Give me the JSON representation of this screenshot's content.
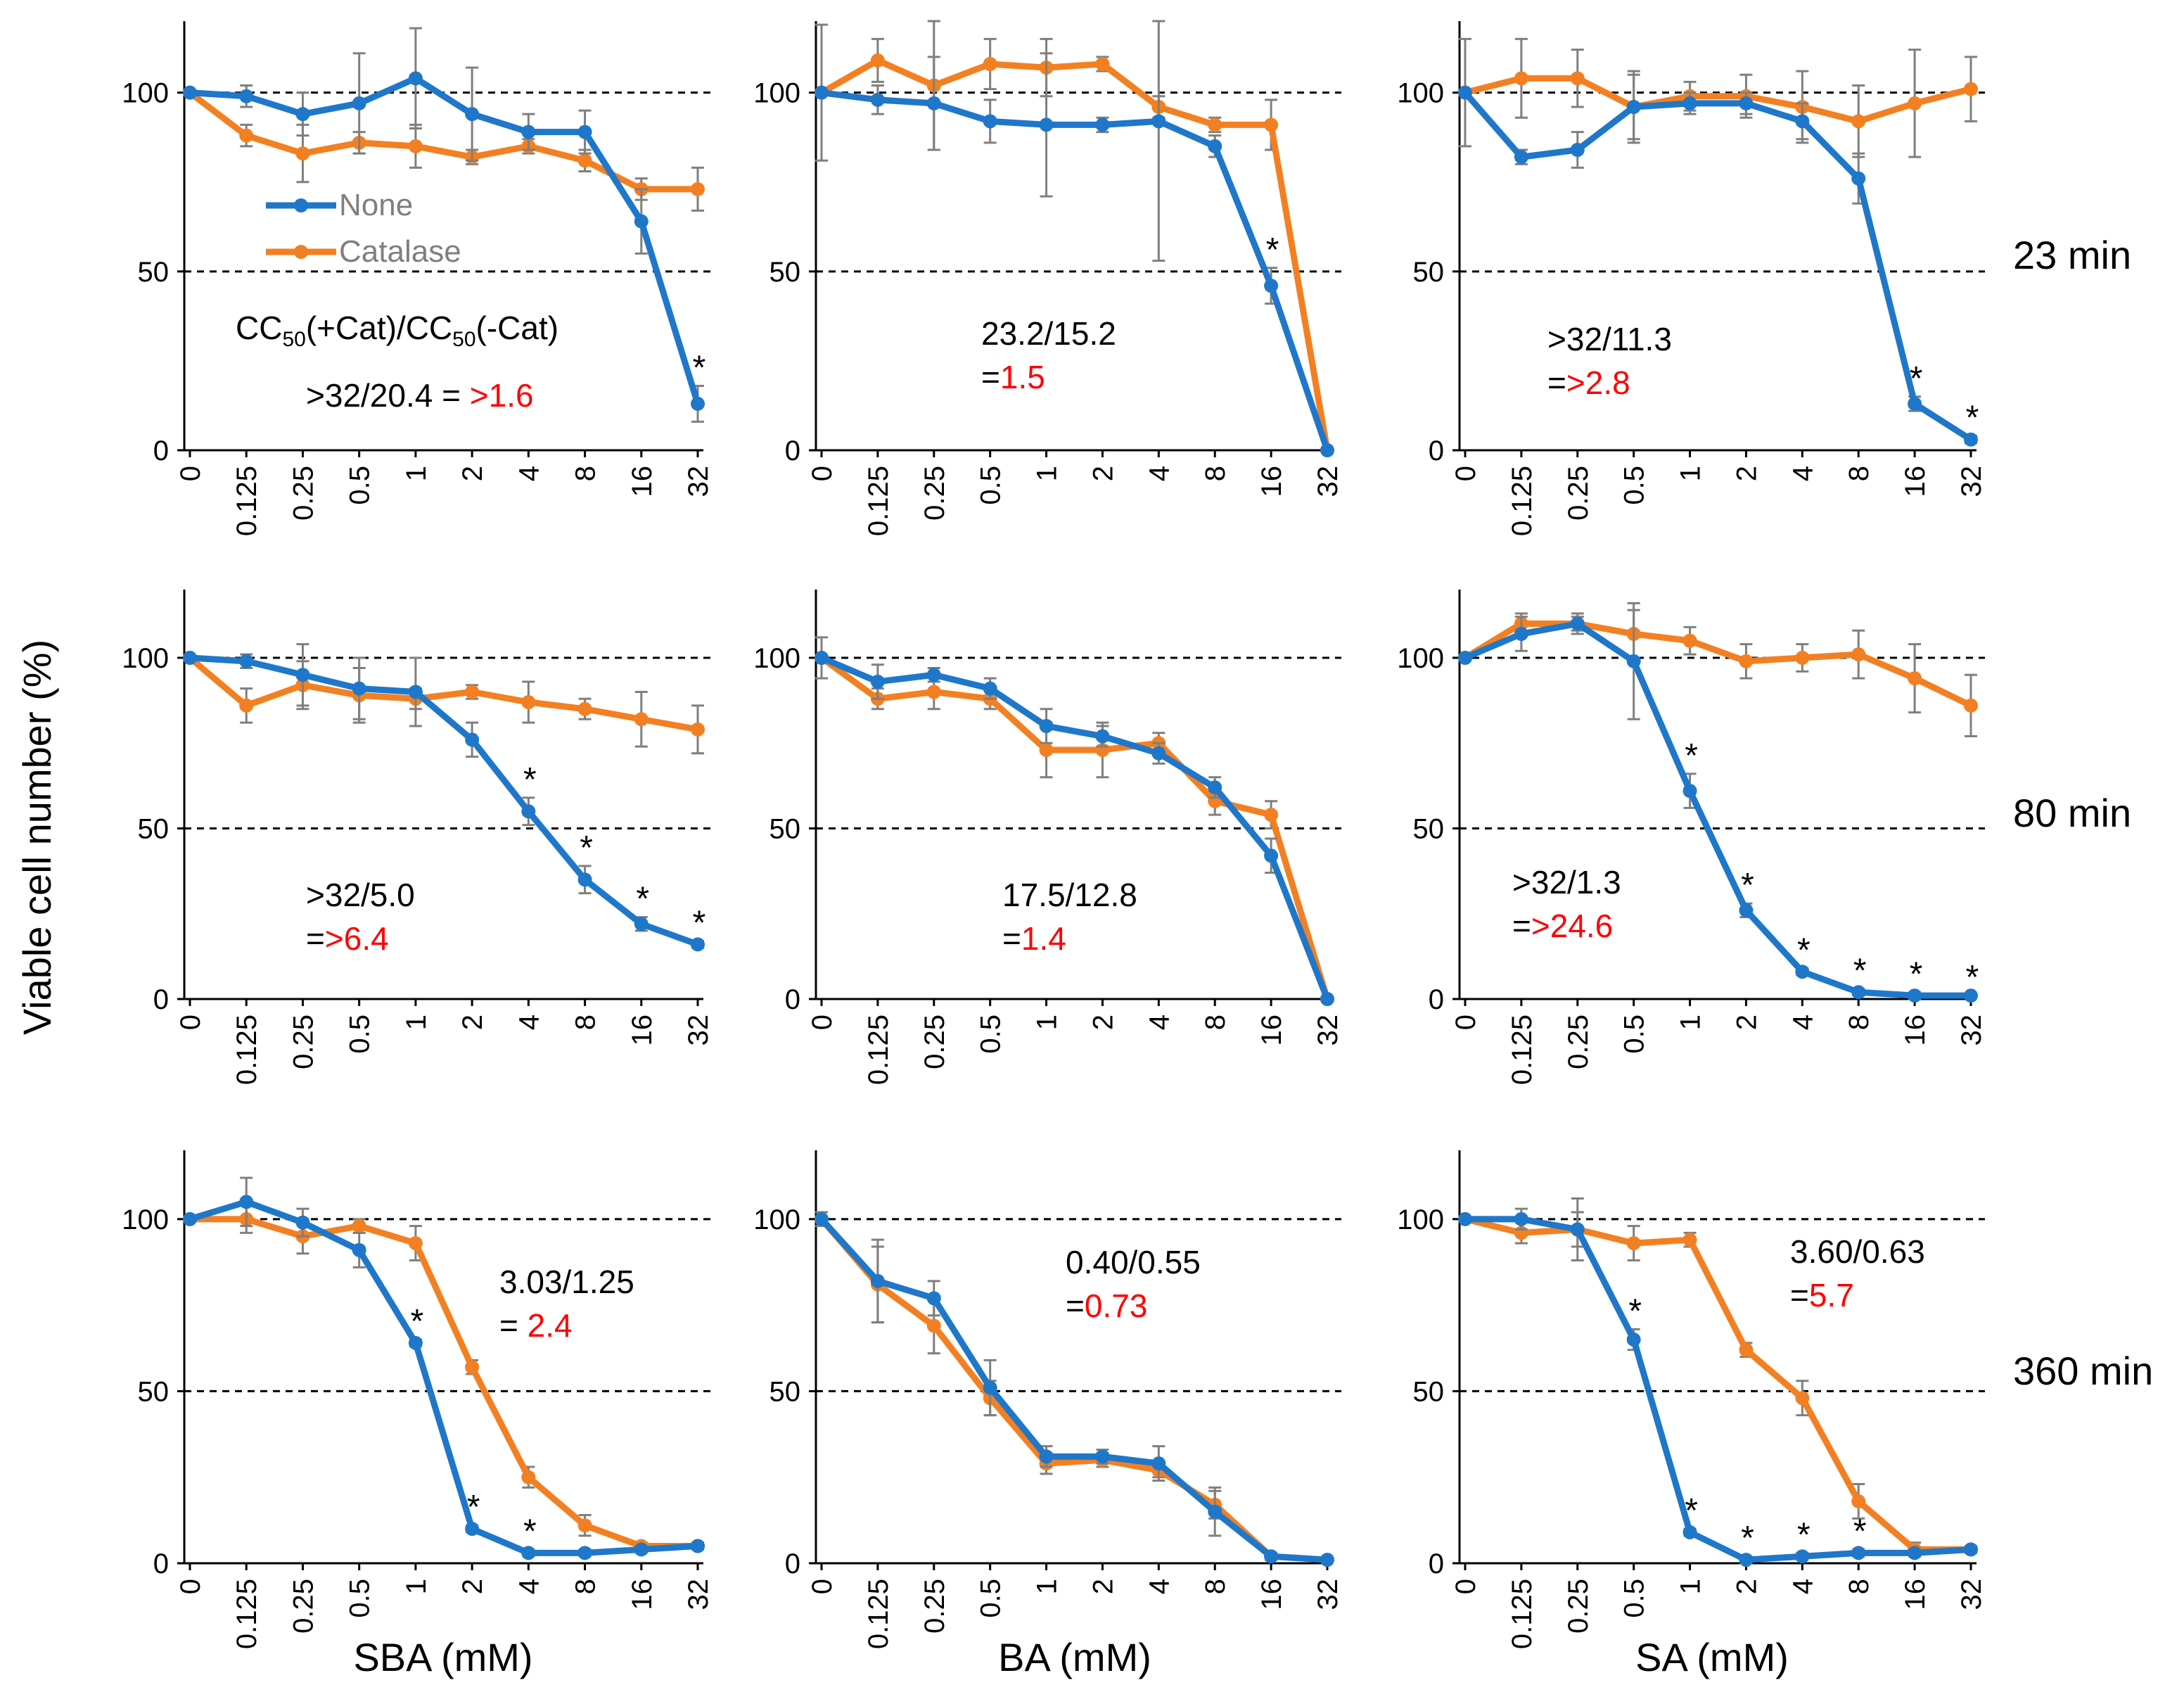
{
  "figure": {
    "y_axis_title": "Viable cell number (%)",
    "x_axis_titles": [
      "SBA (mM)",
      "BA (mM)",
      "SA (mM)"
    ],
    "row_labels": [
      "23 min",
      "80 min",
      "360 min"
    ],
    "legend": [
      {
        "name": "None",
        "color": "#1f77c9"
      },
      {
        "name": "Catalase",
        "color": "#f28022"
      }
    ],
    "formula": {
      "prefix": "CC",
      "sub": "50",
      "mid": "(+Cat)/CC",
      "sub2": "50",
      "suffix": "(-Cat)"
    }
  },
  "colors": {
    "none": "#1f77c9",
    "catalase": "#f28022",
    "ratio": "#ff0000",
    "error_bar": "#7f7f7f"
  },
  "chart_data": [
    {
      "type": "line",
      "row": 0,
      "col": 0,
      "time": "23 min",
      "compound": "SBA",
      "categories": [
        "0",
        "0.125",
        "0.25",
        "0.5",
        "1",
        "2",
        "4",
        "8",
        "16",
        "32"
      ],
      "ylim": [
        0,
        120
      ],
      "yticks": [
        0,
        50,
        100
      ],
      "ref_lines": [
        50,
        100
      ],
      "series": [
        {
          "name": "None",
          "values": [
            100,
            99,
            94,
            97,
            104,
            94,
            89,
            89,
            64,
            13
          ],
          "errors": [
            0,
            3,
            6,
            14,
            14,
            13,
            5,
            6,
            9,
            5
          ]
        },
        {
          "name": "Catalase",
          "values": [
            100,
            88,
            83,
            86,
            85,
            82,
            85,
            81,
            73,
            73
          ],
          "errors": [
            0,
            3,
            8,
            3,
            6,
            2,
            2,
            3,
            3,
            6
          ]
        }
      ],
      "stars": [
        9
      ],
      "ratio_line1": ">32/20.4 = ",
      "ratio_value": ">1.6",
      "ratio_split": false
    },
    {
      "type": "line",
      "row": 0,
      "col": 1,
      "time": "23 min",
      "compound": "BA",
      "categories": [
        "0",
        "0.125",
        "0.25",
        "0.5",
        "1",
        "2",
        "4",
        "8",
        "16",
        "32"
      ],
      "ylim": [
        0,
        120
      ],
      "yticks": [
        0,
        50,
        100
      ],
      "ref_lines": [
        50,
        100
      ],
      "series": [
        {
          "name": "None",
          "values": [
            100,
            98,
            97,
            92,
            91,
            91,
            92,
            85,
            46,
            0
          ],
          "errors": [
            19,
            4,
            13,
            6,
            20,
            2,
            39,
            3,
            5,
            0
          ]
        },
        {
          "name": "Catalase",
          "values": [
            100,
            109,
            102,
            108,
            107,
            108,
            96,
            91,
            91,
            0
          ],
          "errors": [
            0,
            6,
            18,
            7,
            8,
            2,
            3,
            2,
            7,
            0
          ]
        }
      ],
      "stars": [
        8
      ],
      "ratio_line1": "23.2/15.2",
      "ratio_value": "1.5",
      "ratio_split": true
    },
    {
      "type": "line",
      "row": 0,
      "col": 2,
      "time": "23 min",
      "compound": "SA",
      "categories": [
        "0",
        "0.125",
        "0.25",
        "0.5",
        "1",
        "2",
        "4",
        "8",
        "16",
        "32"
      ],
      "ylim": [
        0,
        120
      ],
      "yticks": [
        0,
        50,
        100
      ],
      "ref_lines": [
        50,
        100
      ],
      "series": [
        {
          "name": "None",
          "values": [
            100,
            82,
            84,
            96,
            97,
            97,
            92,
            76,
            13,
            3
          ],
          "errors": [
            15,
            2,
            5,
            10,
            3,
            3,
            5,
            7,
            2,
            1
          ]
        },
        {
          "name": "Catalase",
          "values": [
            100,
            104,
            104,
            96,
            99,
            99,
            96,
            92,
            97,
            101
          ],
          "errors": [
            0,
            11,
            8,
            9,
            4,
            6,
            10,
            10,
            15,
            9
          ]
        }
      ],
      "stars": [
        8,
        9
      ],
      "ratio_line1": ">32/11.3",
      "ratio_value": ">2.8",
      "ratio_split": true
    },
    {
      "type": "line",
      "row": 1,
      "col": 0,
      "time": "80 min",
      "compound": "SBA",
      "categories": [
        "0",
        "0.125",
        "0.25",
        "0.5",
        "1",
        "2",
        "4",
        "8",
        "16",
        "32"
      ],
      "ylim": [
        0,
        120
      ],
      "yticks": [
        0,
        50,
        100
      ],
      "ref_lines": [
        50,
        100
      ],
      "series": [
        {
          "name": "None",
          "values": [
            100,
            99,
            95,
            91,
            90,
            76,
            55,
            35,
            22,
            16
          ],
          "errors": [
            0,
            2,
            9,
            9,
            10,
            5,
            4,
            4,
            2,
            1
          ]
        },
        {
          "name": "Catalase",
          "values": [
            100,
            86,
            92,
            89,
            88,
            90,
            87,
            85,
            82,
            79
          ],
          "errors": [
            0,
            5,
            7,
            8,
            3,
            2,
            6,
            3,
            8,
            7
          ]
        }
      ],
      "stars": [
        6,
        7,
        8,
        9
      ],
      "ratio_line1": ">32/5.0",
      "ratio_value": ">6.4",
      "ratio_split": true
    },
    {
      "type": "line",
      "row": 1,
      "col": 1,
      "time": "80 min",
      "compound": "BA",
      "categories": [
        "0",
        "0.125",
        "0.25",
        "0.5",
        "1",
        "2",
        "4",
        "8",
        "16",
        "32"
      ],
      "ylim": [
        0,
        120
      ],
      "yticks": [
        0,
        50,
        100
      ],
      "ref_lines": [
        50,
        100
      ],
      "series": [
        {
          "name": "None",
          "values": [
            100,
            93,
            95,
            91,
            80,
            77,
            72,
            62,
            42,
            0
          ],
          "errors": [
            6,
            5,
            2,
            3,
            5,
            3,
            3,
            3,
            5,
            0
          ]
        },
        {
          "name": "Catalase",
          "values": [
            100,
            88,
            90,
            88,
            73,
            73,
            75,
            58,
            54,
            0
          ],
          "errors": [
            0,
            3,
            5,
            3,
            8,
            8,
            3,
            4,
            4,
            0
          ]
        }
      ],
      "stars": [],
      "ratio_line1": "17.5/12.8",
      "ratio_value": "1.4",
      "ratio_split": true
    },
    {
      "type": "line",
      "row": 1,
      "col": 2,
      "time": "80 min",
      "compound": "SA",
      "categories": [
        "0",
        "0.125",
        "0.25",
        "0.5",
        "1",
        "2",
        "4",
        "8",
        "16",
        "32"
      ],
      "ylim": [
        0,
        120
      ],
      "yticks": [
        0,
        50,
        100
      ],
      "ref_lines": [
        50,
        100
      ],
      "series": [
        {
          "name": "None",
          "values": [
            100,
            107,
            110,
            99,
            61,
            26,
            8,
            2,
            1,
            1
          ],
          "errors": [
            0,
            5,
            3,
            17,
            5,
            2,
            1,
            1,
            1,
            0
          ]
        },
        {
          "name": "Catalase",
          "values": [
            100,
            110,
            110,
            107,
            105,
            99,
            100,
            101,
            94,
            86
          ],
          "errors": [
            0,
            3,
            2,
            7,
            4,
            5,
            4,
            7,
            10,
            9
          ]
        }
      ],
      "stars": [
        4,
        5,
        6,
        7,
        8,
        9
      ],
      "ratio_line1": ">32/1.3",
      "ratio_value": ">24.6",
      "ratio_split": true
    },
    {
      "type": "line",
      "row": 2,
      "col": 0,
      "time": "360 min",
      "compound": "SBA",
      "categories": [
        "0",
        "0.125",
        "0.25",
        "0.5",
        "1",
        "2",
        "4",
        "8",
        "16",
        "32"
      ],
      "ylim": [
        0,
        120
      ],
      "yticks": [
        0,
        50,
        100
      ],
      "ref_lines": [
        50,
        100
      ],
      "series": [
        {
          "name": "None",
          "values": [
            100,
            105,
            99,
            91,
            64,
            10,
            3,
            3,
            4,
            5
          ],
          "errors": [
            0,
            7,
            4,
            5,
            1,
            1,
            1,
            1,
            1,
            1
          ]
        },
        {
          "name": "Catalase",
          "values": [
            100,
            100,
            95,
            98,
            93,
            57,
            25,
            11,
            5,
            5
          ],
          "errors": [
            0,
            4,
            5,
            2,
            5,
            2,
            3,
            3,
            1,
            1
          ]
        }
      ],
      "stars": [
        4,
        5,
        6
      ],
      "ratio_line1": "3.03/1.25",
      "ratio_value": "2.4",
      "ratio_split": true,
      "ratio_sep": "= "
    },
    {
      "type": "line",
      "row": 2,
      "col": 1,
      "time": "360 min",
      "compound": "BA",
      "categories": [
        "0",
        "0.125",
        "0.25",
        "0.5",
        "1",
        "2",
        "4",
        "8",
        "16",
        "32"
      ],
      "ylim": [
        0,
        120
      ],
      "yticks": [
        0,
        50,
        100
      ],
      "ref_lines": [
        50,
        100
      ],
      "series": [
        {
          "name": "None",
          "values": [
            100,
            82,
            77,
            51,
            31,
            31,
            29,
            15,
            2,
            1
          ],
          "errors": [
            2,
            12,
            5,
            8,
            3,
            2,
            5,
            7,
            1,
            0
          ]
        },
        {
          "name": "Catalase",
          "values": [
            100,
            81,
            69,
            48,
            29,
            30,
            27,
            17,
            2,
            1
          ],
          "errors": [
            0,
            11,
            8,
            5,
            3,
            2,
            2,
            4,
            1,
            0
          ]
        }
      ],
      "stars": [],
      "ratio_line1": "0.40/0.55",
      "ratio_value": "0.73",
      "ratio_split": true
    },
    {
      "type": "line",
      "row": 2,
      "col": 2,
      "time": "360 min",
      "compound": "SA",
      "categories": [
        "0",
        "0.125",
        "0.25",
        "0.5",
        "1",
        "2",
        "4",
        "8",
        "16",
        "32"
      ],
      "ylim": [
        0,
        120
      ],
      "yticks": [
        0,
        50,
        100
      ],
      "ref_lines": [
        50,
        100
      ],
      "series": [
        {
          "name": "None",
          "values": [
            100,
            100,
            97,
            65,
            9,
            1,
            2,
            3,
            3,
            4
          ],
          "errors": [
            0,
            3,
            9,
            3,
            1,
            1,
            1,
            1,
            1,
            1
          ]
        },
        {
          "name": "Catalase",
          "values": [
            100,
            96,
            97,
            93,
            94,
            62,
            48,
            18,
            4,
            4
          ],
          "errors": [
            0,
            3,
            5,
            5,
            2,
            2,
            5,
            5,
            2,
            1
          ]
        }
      ],
      "stars": [
        3,
        4,
        5,
        6,
        7
      ],
      "ratio_line1": "3.60/0.63",
      "ratio_value": "5.7",
      "ratio_split": true
    }
  ]
}
